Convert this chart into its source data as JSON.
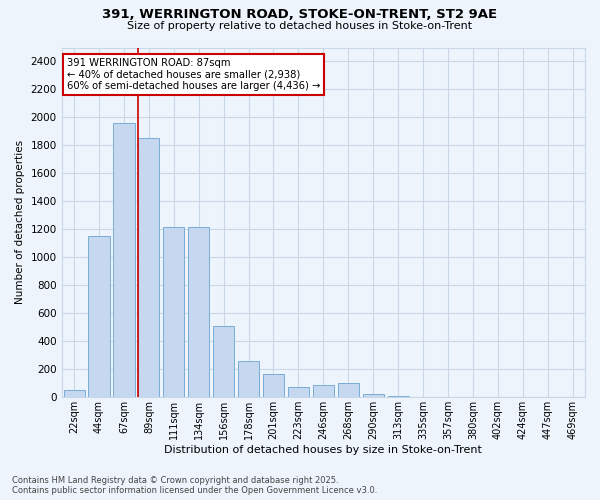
{
  "title_line1": "391, WERRINGTON ROAD, STOKE-ON-TRENT, ST2 9AE",
  "title_line2": "Size of property relative to detached houses in Stoke-on-Trent",
  "xlabel": "Distribution of detached houses by size in Stoke-on-Trent",
  "ylabel": "Number of detached properties",
  "categories": [
    "22sqm",
    "44sqm",
    "67sqm",
    "89sqm",
    "111sqm",
    "134sqm",
    "156sqm",
    "178sqm",
    "201sqm",
    "223sqm",
    "246sqm",
    "268sqm",
    "290sqm",
    "313sqm",
    "335sqm",
    "357sqm",
    "380sqm",
    "402sqm",
    "424sqm",
    "447sqm",
    "469sqm"
  ],
  "values": [
    50,
    1150,
    1960,
    1850,
    1220,
    1220,
    510,
    260,
    165,
    70,
    90,
    100,
    20,
    8,
    5,
    3,
    2,
    1,
    1,
    1,
    1
  ],
  "bar_color": "#c5d8f0",
  "bar_edge_color": "#7aadd4",
  "annotation_text": "391 WERRINGTON ROAD: 87sqm\n← 40% of detached houses are smaller (2,938)\n60% of semi-detached houses are larger (4,436) →",
  "annotation_box_color": "#ffffff",
  "annotation_box_edge": "#cc0000",
  "property_line_color": "#cc0000",
  "ylim": [
    0,
    2500
  ],
  "yticks": [
    0,
    200,
    400,
    600,
    800,
    1000,
    1200,
    1400,
    1600,
    1800,
    2000,
    2200,
    2400
  ],
  "grid_color": "#c8d8e8",
  "background_color": "#eef4fb",
  "footer_line1": "Contains HM Land Registry data © Crown copyright and database right 2025.",
  "footer_line2": "Contains public sector information licensed under the Open Government Licence v3.0."
}
